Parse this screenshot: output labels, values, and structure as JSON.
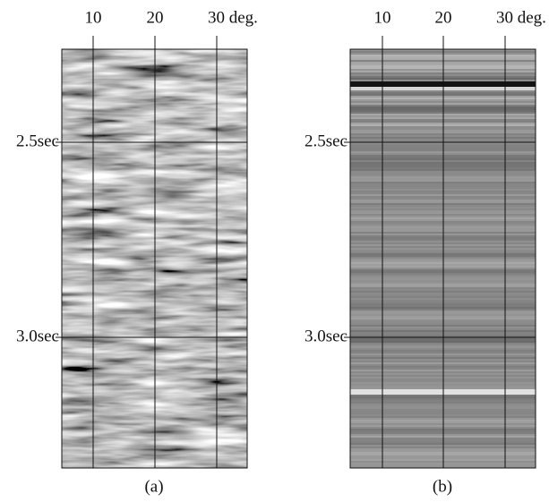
{
  "panels": [
    {
      "xticks": [
        "10",
        "20",
        "30 deg."
      ],
      "yticks": [
        "2.5sec",
        "3.0sec"
      ],
      "caption": "(a)"
    },
    {
      "xticks": [
        "10",
        "20",
        "30 deg."
      ],
      "yticks": [
        "2.5sec",
        "3.0sec"
      ],
      "caption": "(b)"
    }
  ]
}
